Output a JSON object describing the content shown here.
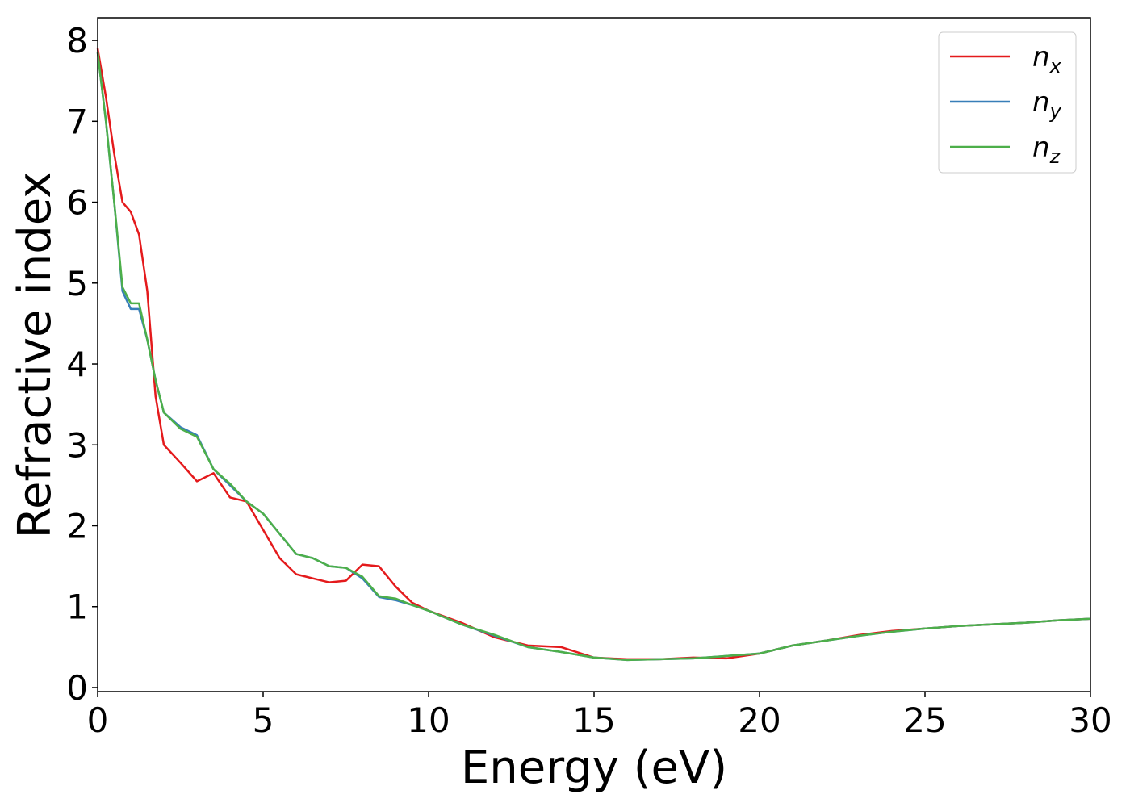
{
  "chart_data": {
    "type": "line",
    "x_label": "Energy (eV)",
    "y_label": "Refractive index",
    "x": [
      0,
      0.25,
      0.5,
      0.75,
      1,
      1.25,
      1.5,
      1.75,
      2,
      2.5,
      3,
      3.5,
      4,
      4.5,
      5,
      5.5,
      6,
      6.5,
      7,
      7.5,
      8,
      8.5,
      9,
      9.5,
      10,
      11,
      12,
      13,
      14,
      15,
      16,
      17,
      18,
      19,
      20,
      21,
      22,
      23,
      24,
      25,
      26,
      27,
      28,
      29,
      30
    ],
    "series": [
      {
        "name": "n_x",
        "color": "#e41a1c",
        "values": [
          7.9,
          7.3,
          6.6,
          6.0,
          5.88,
          5.6,
          4.9,
          3.6,
          3.0,
          2.78,
          2.55,
          2.65,
          2.35,
          2.3,
          1.95,
          1.6,
          1.4,
          1.35,
          1.3,
          1.32,
          1.52,
          1.5,
          1.25,
          1.05,
          0.95,
          0.8,
          0.62,
          0.52,
          0.5,
          0.37,
          0.35,
          0.35,
          0.37,
          0.36,
          0.42,
          0.52,
          0.58,
          0.65,
          0.7,
          0.73,
          0.76,
          0.78,
          0.8,
          0.83,
          0.85
        ]
      },
      {
        "name": "n_y",
        "color": "#377eb8",
        "values": [
          7.85,
          7.0,
          6.0,
          4.9,
          4.68,
          4.68,
          4.3,
          3.8,
          3.4,
          3.22,
          3.12,
          2.7,
          2.5,
          2.3,
          2.15,
          1.9,
          1.65,
          1.6,
          1.5,
          1.48,
          1.35,
          1.12,
          1.08,
          1.02,
          0.95,
          0.78,
          0.64,
          0.5,
          0.44,
          0.37,
          0.34,
          0.35,
          0.36,
          0.39,
          0.42,
          0.52,
          0.58,
          0.64,
          0.69,
          0.73,
          0.76,
          0.78,
          0.8,
          0.83,
          0.85
        ]
      },
      {
        "name": "n_z",
        "color": "#4daf4a",
        "values": [
          7.85,
          7.0,
          6.0,
          4.95,
          4.75,
          4.75,
          4.3,
          3.8,
          3.4,
          3.2,
          3.1,
          2.7,
          2.52,
          2.3,
          2.15,
          1.9,
          1.65,
          1.6,
          1.5,
          1.48,
          1.37,
          1.13,
          1.1,
          1.02,
          0.95,
          0.78,
          0.65,
          0.5,
          0.44,
          0.37,
          0.34,
          0.35,
          0.36,
          0.39,
          0.42,
          0.52,
          0.58,
          0.64,
          0.69,
          0.73,
          0.76,
          0.78,
          0.8,
          0.83,
          0.85
        ]
      }
    ],
    "xlim": [
      0,
      30
    ],
    "xticks": [
      0,
      5,
      10,
      15,
      20,
      25,
      30
    ],
    "ylim": [
      -0.05,
      8.28
    ],
    "yticks": [
      0,
      1,
      2,
      3,
      4,
      5,
      6,
      7,
      8
    ],
    "legend": "upper right"
  }
}
